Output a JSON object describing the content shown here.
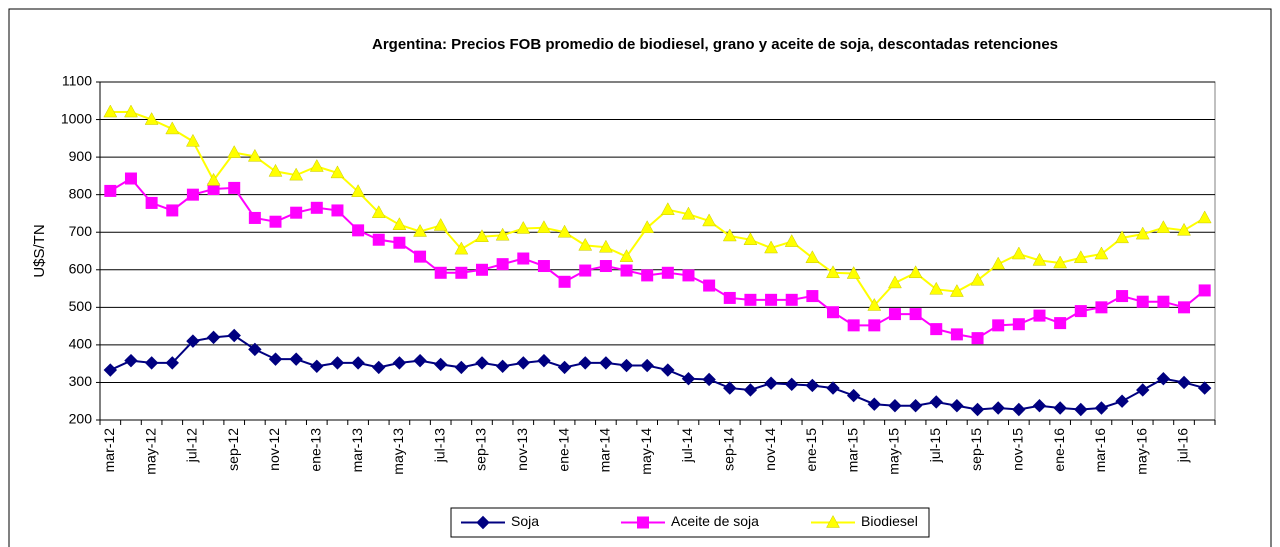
{
  "chart_data": {
    "type": "line",
    "title": "Argentina: Precios FOB  promedio de biodiesel, grano y aceite de soja, descontadas retenciones",
    "y_label": "U$S/TN",
    "categories": [
      "mar-12",
      null,
      "may-12",
      null,
      "jul-12",
      null,
      "sep-12",
      null,
      "nov-12",
      null,
      "ene-13",
      null,
      "mar-13",
      null,
      "may-13",
      null,
      "jul-13",
      null,
      "sep-13",
      null,
      "nov-13",
      null,
      "ene-14",
      null,
      "mar-14",
      null,
      "may-14",
      null,
      "jul-14",
      null,
      "sep-14",
      null,
      "nov-14",
      null,
      "ene-15",
      null,
      "mar-15",
      null,
      "may-15",
      null,
      "jul-15",
      null,
      "sep-15",
      null,
      "nov-15",
      null,
      "ene-16",
      null,
      "mar-16",
      null,
      "may-16",
      null,
      "jul-16",
      null
    ],
    "series": [
      {
        "name": "Soja",
        "color": "#000080",
        "marker": "diamond",
        "values": [
          333,
          358,
          352,
          352,
          410,
          420,
          425,
          388,
          362,
          362,
          343,
          352,
          352,
          340,
          352,
          358,
          348,
          340,
          352,
          343,
          352,
          358,
          340,
          352,
          352,
          345,
          345,
          333,
          310,
          308,
          285,
          280,
          298,
          295,
          292,
          285,
          265,
          242,
          238,
          238,
          248,
          238,
          228,
          232,
          228,
          238,
          232,
          228,
          232,
          250,
          280,
          310,
          300,
          285
        ]
      },
      {
        "name": "Aceite de soja",
        "color": "#ff00ff",
        "marker": "square",
        "values": [
          810,
          843,
          778,
          758,
          800,
          815,
          818,
          738,
          728,
          752,
          765,
          758,
          705,
          680,
          672,
          635,
          592,
          592,
          600,
          615,
          630,
          610,
          568,
          598,
          610,
          598,
          585,
          592,
          585,
          558,
          525,
          520,
          520,
          520,
          530,
          487,
          452,
          452,
          482,
          482,
          442,
          428,
          418,
          452,
          455,
          478,
          458,
          490,
          500,
          530,
          515,
          515,
          500,
          545
        ]
      },
      {
        "name": "Biodiesel",
        "color": "#ffff00",
        "marker": "triangle",
        "values": [
          1020,
          1020,
          1000,
          975,
          942,
          838,
          912,
          902,
          862,
          852,
          875,
          858,
          808,
          752,
          720,
          702,
          718,
          655,
          688,
          692,
          710,
          712,
          700,
          665,
          660,
          635,
          712,
          760,
          748,
          730,
          690,
          680,
          658,
          675,
          632,
          592,
          590,
          505,
          565,
          592,
          548,
          542,
          572,
          615,
          642,
          625,
          618,
          632,
          642,
          685,
          695,
          712,
          705,
          738
        ]
      }
    ],
    "ylim": [
      200,
      1100
    ],
    "yticks": [
      200,
      300,
      400,
      500,
      600,
      700,
      800,
      900,
      1000,
      1100
    ],
    "grid": true,
    "legend": "bottom"
  }
}
